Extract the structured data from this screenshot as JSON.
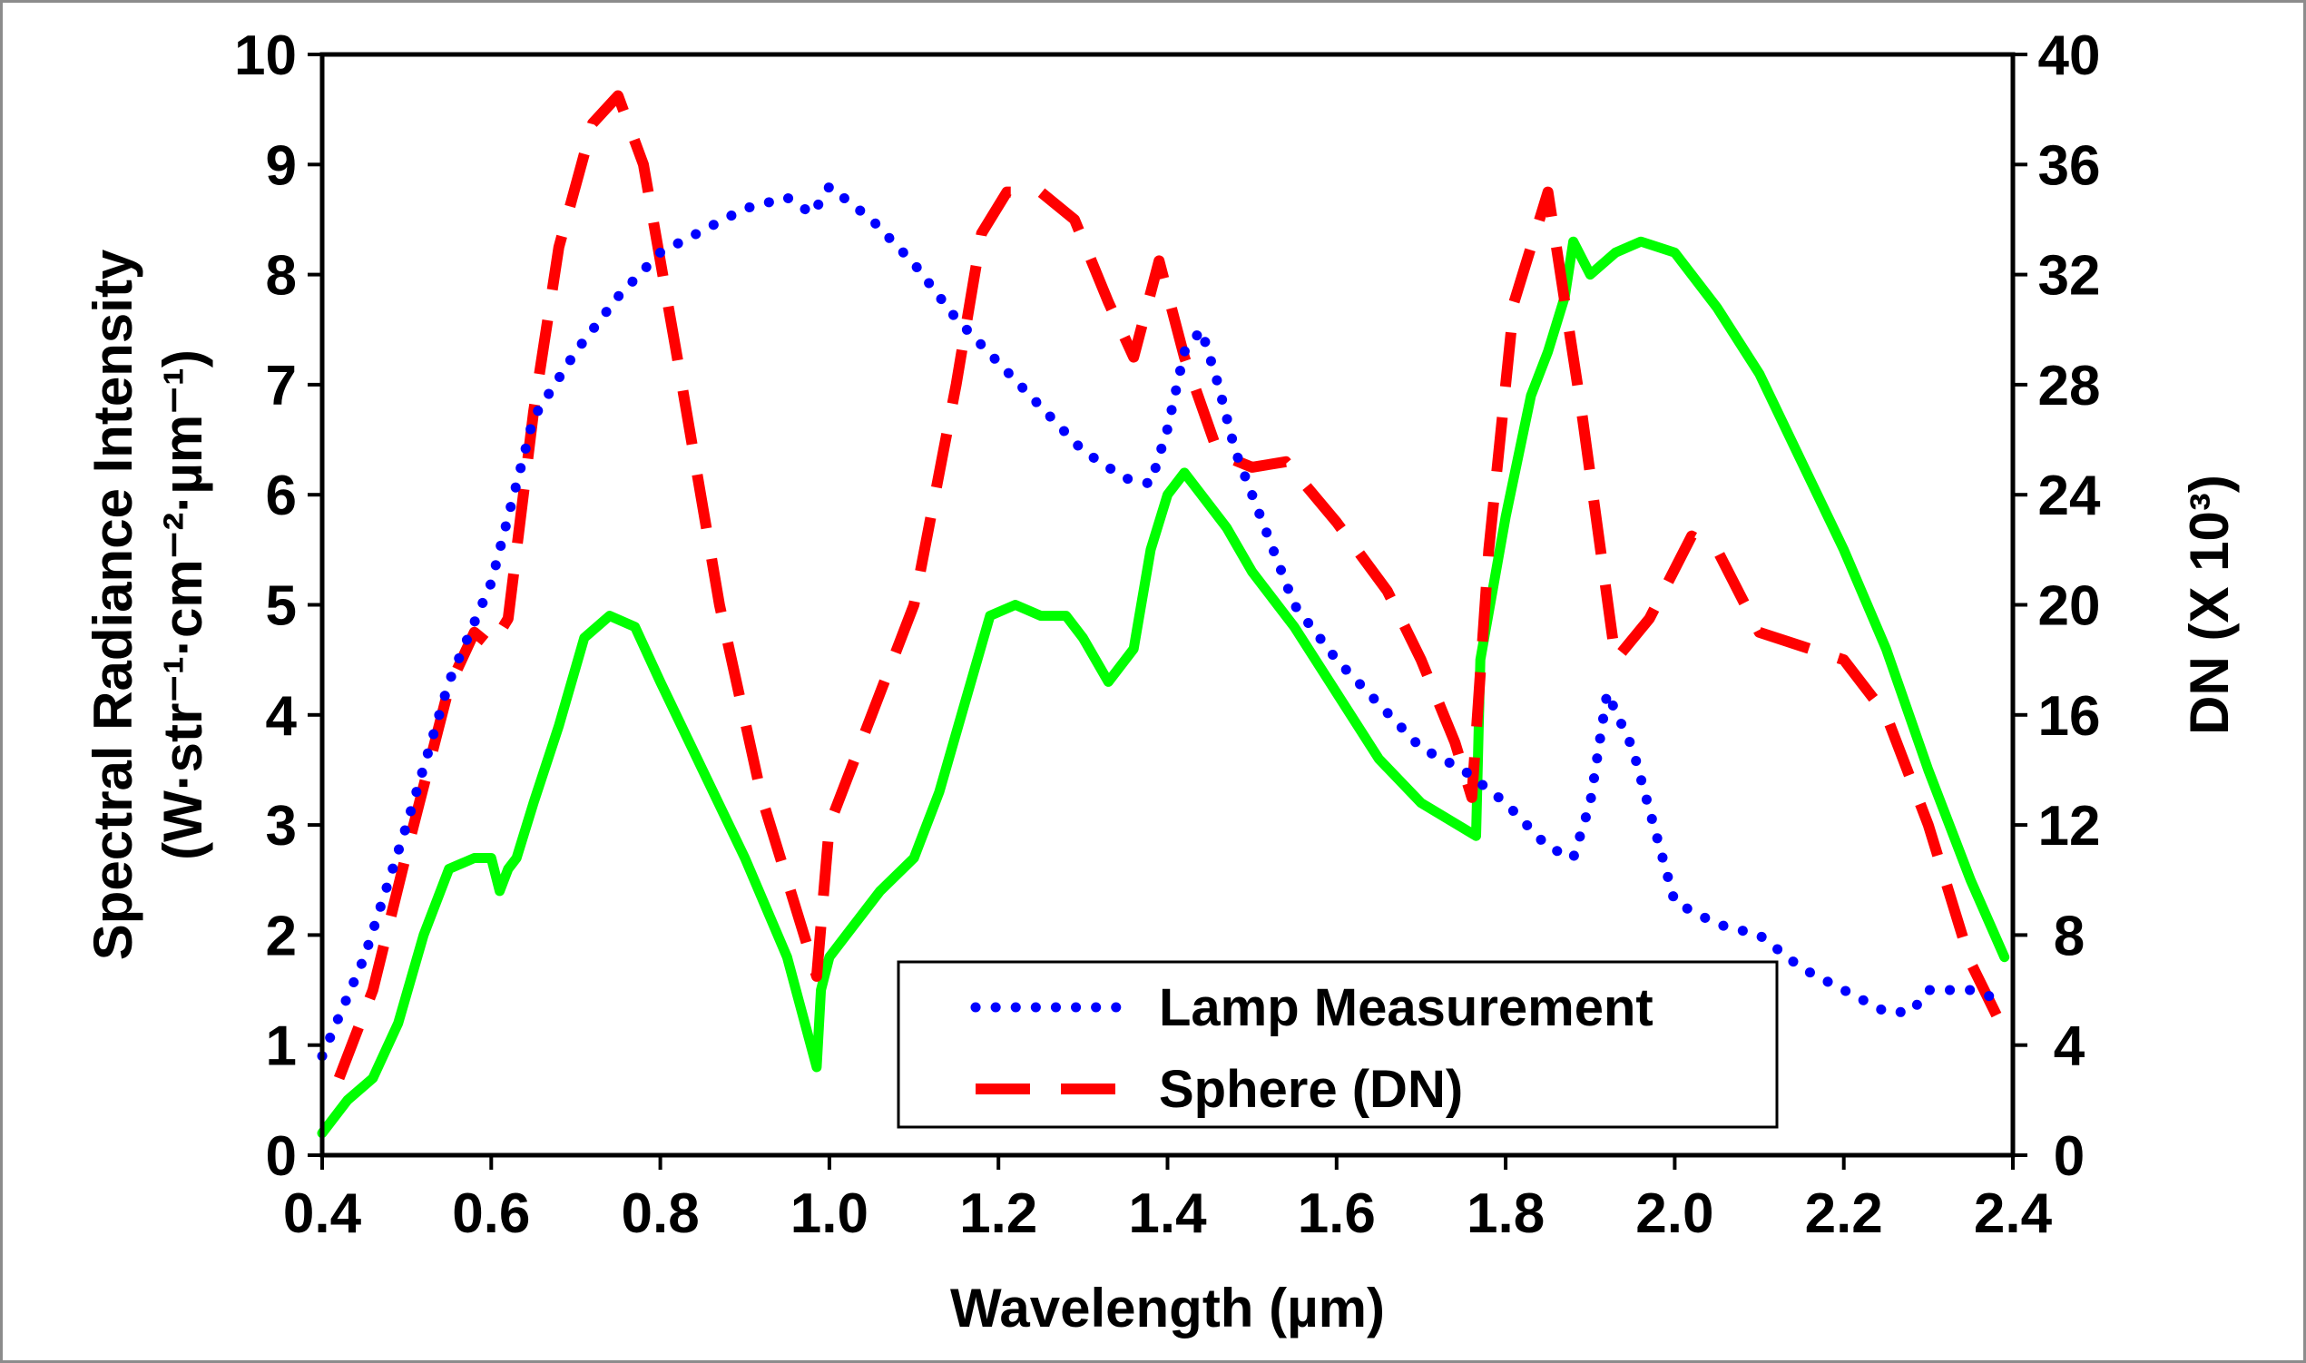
{
  "chart_data": {
    "type": "line",
    "title": "",
    "xlabel": "Wavelength (µm)",
    "ylabel": "Spectral Radiance Intensity",
    "ylabel_units": "(W·str⁻¹·cm⁻²·µm⁻¹)",
    "y2label": "DN (X 10³)",
    "xlim": [
      0.4,
      2.4
    ],
    "ylim": [
      0,
      10
    ],
    "y2lim": [
      0,
      40
    ],
    "x_ticks": [
      "0.4",
      "0.6",
      "0.8",
      "1.0",
      "1.2",
      "1.4",
      "1.6",
      "1.8",
      "2.0",
      "2.2",
      "2.4"
    ],
    "x_tick_values": [
      0.4,
      0.6,
      0.8,
      1.0,
      1.2,
      1.4,
      1.6,
      1.8,
      2.0,
      2.2,
      2.4
    ],
    "y_ticks": [
      "0",
      "1",
      "2",
      "3",
      "4",
      "5",
      "6",
      "7",
      "8",
      "9",
      "10"
    ],
    "y_tick_values": [
      0,
      1,
      2,
      3,
      4,
      5,
      6,
      7,
      8,
      9,
      10
    ],
    "y2_ticks": [
      "0",
      "4",
      "8",
      "12",
      "16",
      "20",
      "24",
      "28",
      "32",
      "36",
      "40"
    ],
    "y2_tick_values": [
      0,
      4,
      8,
      12,
      16,
      20,
      24,
      28,
      32,
      36,
      40
    ],
    "grid": false,
    "legend_position": "bottom-center",
    "legend": [
      "Lamp Measurement",
      "Sphere (DN)"
    ],
    "series": [
      {
        "name": "Lamp Measurement",
        "axis": "left",
        "style": "dotted",
        "color": "#0000ff",
        "x": [
          0.4,
          0.45,
          0.5,
          0.55,
          0.6,
          0.65,
          0.7,
          0.75,
          0.8,
          0.85,
          0.9,
          0.95,
          0.98,
          1.0,
          1.05,
          1.1,
          1.15,
          1.2,
          1.25,
          1.3,
          1.35,
          1.38,
          1.4,
          1.42,
          1.44,
          1.46,
          1.48,
          1.5,
          1.55,
          1.6,
          1.65,
          1.7,
          1.75,
          1.8,
          1.85,
          1.88,
          1.9,
          1.92,
          1.95,
          2.0,
          2.05,
          2.1,
          2.15,
          2.2,
          2.25,
          2.28,
          2.3,
          2.35,
          2.39
        ],
        "y": [
          0.9,
          1.8,
          3.0,
          4.3,
          5.2,
          6.7,
          7.3,
          7.8,
          8.2,
          8.4,
          8.6,
          8.7,
          8.55,
          8.8,
          8.5,
          8.1,
          7.6,
          7.2,
          6.8,
          6.4,
          6.15,
          6.1,
          6.6,
          7.3,
          7.5,
          7.0,
          6.4,
          6.0,
          5.0,
          4.5,
          4.1,
          3.7,
          3.5,
          3.2,
          2.8,
          2.7,
          3.2,
          4.2,
          3.7,
          2.3,
          2.1,
          2.0,
          1.7,
          1.5,
          1.3,
          1.3,
          1.5,
          1.5,
          1.4
        ]
      },
      {
        "name": "Sphere (DN)",
        "axis": "right",
        "style": "dashed",
        "color": "#ff0000",
        "x": [
          0.42,
          0.46,
          0.5,
          0.55,
          0.58,
          0.6,
          0.62,
          0.65,
          0.68,
          0.72,
          0.75,
          0.78,
          0.82,
          0.87,
          0.92,
          0.97,
          0.985,
          1.0,
          1.05,
          1.1,
          1.15,
          1.18,
          1.21,
          1.25,
          1.29,
          1.33,
          1.36,
          1.39,
          1.42,
          1.46,
          1.5,
          1.54,
          1.6,
          1.66,
          1.7,
          1.74,
          1.76,
          1.78,
          1.81,
          1.85,
          1.89,
          1.93,
          1.97,
          2.02,
          2.05,
          2.1,
          2.15,
          2.2,
          2.25,
          2.3,
          2.35,
          2.39
        ],
        "y": [
          2.8,
          6.0,
          11.0,
          17.0,
          19.0,
          18.5,
          19.5,
          27.0,
          33.0,
          37.5,
          38.5,
          36.0,
          29.0,
          20.0,
          13.0,
          8.0,
          6.5,
          12.0,
          16.0,
          20.0,
          28.0,
          33.5,
          35.0,
          35.0,
          34.0,
          31.0,
          29.0,
          32.5,
          29.0,
          25.5,
          25.0,
          25.2,
          23.0,
          20.5,
          18.0,
          15.0,
          13.0,
          22.0,
          31.0,
          35.0,
          27.0,
          18.0,
          19.5,
          22.5,
          22.0,
          19.0,
          18.5,
          18.0,
          16.0,
          12.0,
          7.0,
          4.5
        ]
      },
      {
        "name": "",
        "axis": "left",
        "style": "solid",
        "color": "#00ff00",
        "x": [
          0.4,
          0.43,
          0.46,
          0.49,
          0.52,
          0.55,
          0.58,
          0.6,
          0.61,
          0.62,
          0.63,
          0.65,
          0.68,
          0.71,
          0.74,
          0.77,
          0.8,
          0.85,
          0.9,
          0.95,
          0.985,
          0.99,
          1.0,
          1.03,
          1.06,
          1.1,
          1.13,
          1.16,
          1.19,
          1.22,
          1.25,
          1.28,
          1.3,
          1.33,
          1.36,
          1.38,
          1.4,
          1.42,
          1.44,
          1.47,
          1.5,
          1.55,
          1.6,
          1.65,
          1.7,
          1.765,
          1.77,
          1.8,
          1.83,
          1.85,
          1.87,
          1.88,
          1.9,
          1.93,
          1.96,
          2.0,
          2.05,
          2.1,
          2.15,
          2.2,
          2.25,
          2.3,
          2.35,
          2.39
        ],
        "y": [
          0.2,
          0.5,
          0.7,
          1.2,
          2.0,
          2.6,
          2.7,
          2.7,
          2.4,
          2.6,
          2.7,
          3.2,
          3.9,
          4.7,
          4.9,
          4.8,
          4.3,
          3.5,
          2.7,
          1.8,
          0.8,
          1.5,
          1.8,
          2.1,
          2.4,
          2.7,
          3.3,
          4.1,
          4.9,
          5.0,
          4.9,
          4.9,
          4.7,
          4.3,
          4.6,
          5.5,
          6.0,
          6.2,
          6.0,
          5.7,
          5.3,
          4.8,
          4.2,
          3.6,
          3.2,
          2.9,
          4.5,
          5.8,
          6.9,
          7.3,
          7.8,
          8.3,
          8.0,
          8.2,
          8.3,
          8.2,
          7.7,
          7.1,
          6.3,
          5.5,
          4.6,
          3.5,
          2.5,
          1.8
        ]
      }
    ]
  }
}
